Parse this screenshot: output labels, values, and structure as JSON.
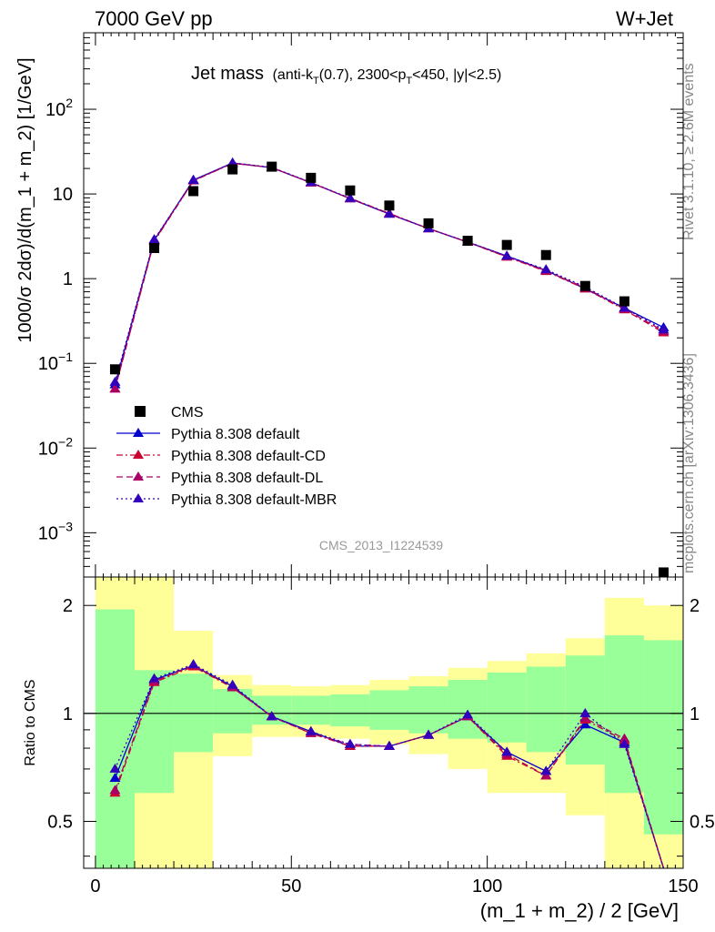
{
  "header": {
    "left": "7000 GeV pp",
    "right": "W+Jet"
  },
  "side_labels": {
    "rivet": "Rivet 3.1.10, ≥ 2.6M events",
    "mcplots": "mcplots.cern.ch [arXiv:1306.3436]"
  },
  "analysis_id": "CMS_2013_I1224539",
  "top_panel": {
    "ylabel": "1000/σ 2dσ)/d(m_1 + m_2) [1/GeV]",
    "title_main": "Jet mass",
    "title_detail_a": "(anti-k",
    "title_detail_sub_a": "T",
    "title_detail_b": "(0.7), 2300<p",
    "title_detail_sub_b": "T",
    "title_detail_c": "<450, |y|<2.5)"
  },
  "bottom_panel": {
    "ylabel": "Ratio to CMS"
  },
  "xaxis_label": "(m_1 + m_2) / 2 [GeV]",
  "chart_data": [
    {
      "type": "scatter",
      "panel": "main",
      "yscale": "log",
      "xlim": [
        -3,
        150
      ],
      "ylim": [
        0.0003,
        800
      ],
      "x_ticks": [
        0,
        50,
        100,
        150
      ],
      "y_ticks": [
        "10^-3",
        "10^-2",
        "10^-1",
        "1",
        "10",
        "10^2"
      ],
      "x": [
        5,
        15,
        25,
        35,
        45,
        55,
        65,
        75,
        85,
        95,
        105,
        115,
        125,
        135,
        145
      ],
      "legend": [
        "CMS",
        "Pythia 8.308 default",
        "Pythia 8.308 default-CD",
        "Pythia 8.308 default-DL",
        "Pythia 8.308 default-MBR"
      ],
      "series": [
        {
          "name": "CMS",
          "color": "#000000",
          "marker": "square",
          "values": [
            0.085,
            2.3,
            10.8,
            19.5,
            21.0,
            15.5,
            11.0,
            7.3,
            4.5,
            2.8,
            2.5,
            1.9,
            0.82,
            0.54,
            0.00034
          ]
        },
        {
          "name": "Pythia 8.308 default",
          "color": "#0000cc",
          "line": "solid",
          "values": [
            0.056,
            2.85,
            14.6,
            23.2,
            20.4,
            13.6,
            8.8,
            5.8,
            3.9,
            2.7,
            1.85,
            1.25,
            0.76,
            0.45,
            0.265
          ]
        },
        {
          "name": "Pythia 8.308 default-CD",
          "color": "#cc0033",
          "line": "dashdot",
          "values": [
            0.05,
            2.75,
            14.3,
            23.0,
            20.5,
            13.5,
            8.9,
            5.9,
            3.9,
            2.7,
            1.8,
            1.22,
            0.76,
            0.43,
            0.23
          ]
        },
        {
          "name": "Pythia 8.308 default-DL",
          "color": "#aa0066",
          "line": "dashed",
          "values": [
            0.05,
            2.8,
            14.4,
            23.1,
            20.5,
            13.6,
            8.8,
            5.8,
            3.9,
            2.7,
            1.82,
            1.24,
            0.78,
            0.44,
            0.24
          ]
        },
        {
          "name": "Pythia 8.308 default-MBR",
          "color": "#3300bb",
          "line": "dotted",
          "values": [
            0.06,
            2.9,
            14.5,
            23.3,
            20.6,
            13.7,
            8.9,
            5.8,
            3.9,
            2.72,
            1.85,
            1.28,
            0.8,
            0.45,
            0.25
          ]
        }
      ]
    },
    {
      "type": "line",
      "panel": "ratio",
      "yscale": "log",
      "xlim": [
        -3,
        150
      ],
      "ylim": [
        0.37,
        2.4
      ],
      "y_ticks": [
        0.5,
        1,
        2
      ],
      "bands": {
        "edges": [
          0,
          10,
          20,
          30,
          40,
          50,
          60,
          70,
          80,
          90,
          100,
          110,
          120,
          130,
          140,
          150
        ],
        "green_low": [
          0.37,
          0.6,
          0.78,
          0.88,
          0.93,
          0.93,
          0.92,
          0.9,
          0.88,
          0.85,
          0.83,
          0.78,
          0.72,
          0.6,
          0.46
        ],
        "green_high": [
          1.95,
          1.32,
          1.29,
          1.17,
          1.12,
          1.12,
          1.13,
          1.16,
          1.19,
          1.24,
          1.3,
          1.35,
          1.45,
          1.65,
          1.6
        ],
        "yellow_low": [
          0.37,
          0.37,
          0.37,
          0.76,
          0.86,
          0.86,
          0.85,
          0.82,
          0.77,
          0.7,
          0.6,
          0.6,
          0.52,
          0.37,
          0.37
        ],
        "yellow_high": [
          2.5,
          2.5,
          1.7,
          1.28,
          1.2,
          1.19,
          1.2,
          1.24,
          1.27,
          1.34,
          1.4,
          1.47,
          1.62,
          2.1,
          2.0
        ]
      },
      "x": [
        5,
        15,
        25,
        35,
        45,
        55,
        65,
        75,
        85,
        95,
        105,
        115,
        125,
        135,
        145
      ],
      "series": [
        {
          "name": "Pythia 8.308 default",
          "color": "#0000cc",
          "line": "solid",
          "values": [
            0.66,
            1.24,
            1.36,
            1.19,
            0.98,
            0.89,
            0.81,
            0.81,
            0.87,
            0.98,
            0.78,
            0.69,
            0.93,
            0.83,
            0.25
          ]
        },
        {
          "name": "Pythia 8.308 default-CD",
          "color": "#cc0033",
          "line": "dashdot",
          "values": [
            0.6,
            1.22,
            1.35,
            1.18,
            0.98,
            0.88,
            0.81,
            0.81,
            0.87,
            0.98,
            0.76,
            0.67,
            0.96,
            0.84,
            0.25
          ]
        },
        {
          "name": "Pythia 8.308 default-DL",
          "color": "#aa0066",
          "line": "dashed",
          "values": [
            0.61,
            1.23,
            1.36,
            1.18,
            0.98,
            0.88,
            0.82,
            0.81,
            0.87,
            0.98,
            0.77,
            0.67,
            0.97,
            0.85,
            0.25
          ]
        },
        {
          "name": "Pythia 8.308 default-MBR",
          "color": "#3300bb",
          "line": "dotted",
          "values": [
            0.7,
            1.25,
            1.37,
            1.2,
            0.98,
            0.89,
            0.82,
            0.81,
            0.87,
            0.99,
            0.78,
            0.69,
            1.0,
            0.82,
            0.25
          ]
        }
      ]
    }
  ]
}
